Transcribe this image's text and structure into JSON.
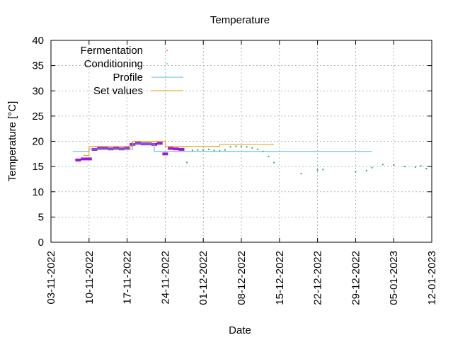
{
  "chart_data": {
    "type": "scatter",
    "title": "Temperature",
    "xlabel": "Date",
    "ylabel": "Temperature [°C]",
    "ylim": [
      0,
      40
    ],
    "xlim": [
      "03-11-2022",
      "12-01-2023"
    ],
    "y_ticks": [
      "0",
      "5",
      "10",
      "15",
      "20",
      "25",
      "30",
      "35",
      "40"
    ],
    "x_ticks": [
      "03-11-2022",
      "10-11-2022",
      "17-11-2022",
      "24-11-2022",
      "01-12-2022",
      "08-12-2022",
      "15-12-2022",
      "22-12-2022",
      "29-12-2022",
      "05-01-2023",
      "12-01-2023"
    ],
    "grid": true,
    "legend_position": "top-left",
    "colors": {
      "fermentation": "#9400d3",
      "conditioning": "#009e73",
      "profile": "#56b4e9",
      "set_values": "#e69f00",
      "grid": "#a0a0a0"
    },
    "series": [
      {
        "name": "Fermentation",
        "kind": "points",
        "x": [
          "08-11-2022",
          "09-11-2022",
          "10-11-2022",
          "11-11-2022",
          "12-11-2022",
          "13-11-2022",
          "14-11-2022",
          "15-11-2022",
          "16-11-2022",
          "17-11-2022",
          "18-11-2022",
          "19-11-2022",
          "20-11-2022",
          "21-11-2022",
          "22-11-2022",
          "23-11-2022",
          "24-11-2022",
          "25-11-2022",
          "26-11-2022",
          "27-11-2022"
        ],
        "y": [
          16.3,
          16.5,
          16.5,
          18.4,
          18.6,
          18.6,
          18.5,
          18.6,
          18.5,
          18.6,
          19.4,
          19.6,
          19.5,
          19.5,
          19.4,
          19.6,
          17.5,
          18.6,
          18.5,
          18.4
        ]
      },
      {
        "name": "Conditioning",
        "kind": "points",
        "x": [
          "28-11-2022",
          "29-11-2022",
          "30-11-2022",
          "01-12-2022",
          "02-12-2022",
          "03-12-2022",
          "04-12-2022",
          "05-12-2022",
          "06-12-2022",
          "07-12-2022",
          "08-12-2022",
          "09-12-2022",
          "10-12-2022",
          "11-12-2022",
          "12-12-2022",
          "13-12-2022",
          "14-12-2022",
          "19-12-2022",
          "22-12-2022",
          "23-12-2022",
          "29-12-2022",
          "31-12-2022",
          "01-01-2023",
          "03-01-2023",
          "05-01-2023",
          "07-01-2023",
          "09-01-2023",
          "10-01-2023",
          "11-01-2023"
        ],
        "y": [
          15.8,
          18.2,
          18.3,
          18.3,
          18.4,
          18.2,
          18.1,
          18.3,
          18.9,
          19.0,
          19.0,
          18.9,
          18.7,
          18.4,
          18.0,
          17.0,
          15.8,
          13.6,
          14.3,
          14.4,
          14.0,
          14.2,
          14.8,
          15.4,
          15.3,
          15.0,
          14.9,
          15.1,
          14.6
        ]
      },
      {
        "name": "Profile",
        "kind": "step",
        "x": [
          "07-11-2022",
          "10-11-2022",
          "10-11-2022",
          "18-11-2022",
          "18-11-2022",
          "22-11-2022",
          "22-11-2022",
          "01-01-2023"
        ],
        "y": [
          18,
          18,
          18.5,
          18.5,
          19.5,
          19.5,
          18,
          18
        ]
      },
      {
        "name": "Set values",
        "kind": "step",
        "x": [
          "09-11-2022",
          "10-11-2022",
          "10-11-2022",
          "18-11-2022",
          "18-11-2022",
          "24-11-2022",
          "24-11-2022",
          "04-12-2022",
          "04-12-2022",
          "14-12-2022"
        ],
        "y": [
          17.2,
          17.2,
          19.0,
          19.0,
          20.0,
          20.0,
          19.0,
          19.0,
          19.4,
          19.4
        ]
      }
    ]
  }
}
